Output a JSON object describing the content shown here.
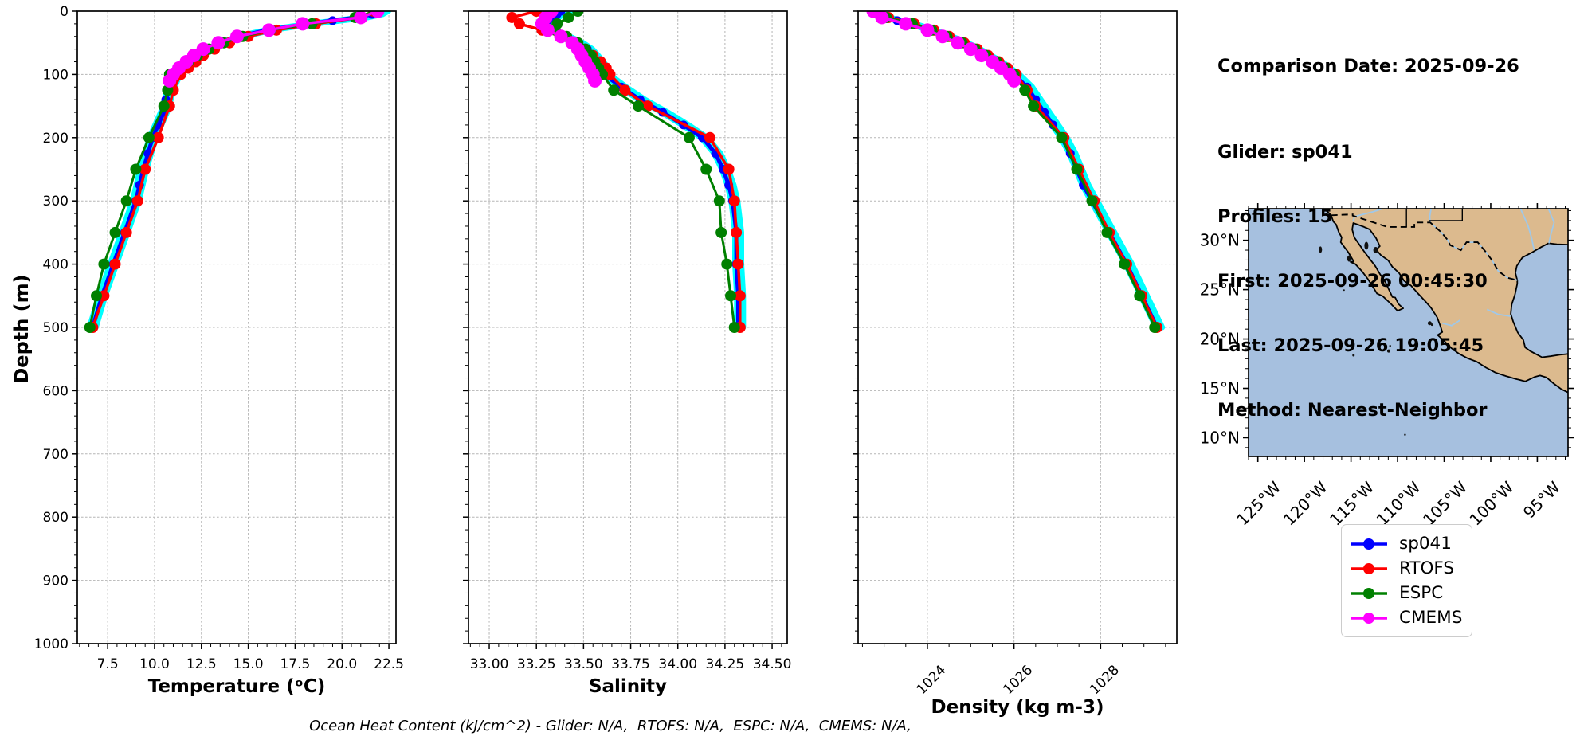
{
  "info_panel": {
    "comparison_date": "Comparison Date: 2025-09-26",
    "glider": "Glider: sp041",
    "profiles": "Profiles: 15",
    "first": "First: 2025-09-26 00:45:30",
    "last": "Last: 2025-09-26 19:05:45",
    "method": "Method: Nearest-Neighbor"
  },
  "footer": "Ocean Heat Content (kJ/cm^2) - Glider: N/A,  RTOFS: N/A,  ESPC: N/A,  CMEMS: N/A,",
  "legend": {
    "items": [
      {
        "label": "sp041",
        "color": "#0000ff"
      },
      {
        "label": "RTOFS",
        "color": "#ff0000"
      },
      {
        "label": "ESPC",
        "color": "#008000"
      },
      {
        "label": "CMEMS",
        "color": "#ff00ff"
      }
    ]
  },
  "depth_axis": {
    "label": "Depth (m)",
    "lim": [
      0,
      1000
    ],
    "ticks": [
      0,
      100,
      200,
      300,
      400,
      500,
      600,
      700,
      800,
      900,
      1000
    ],
    "tick_labels": [
      "0",
      "100",
      "200",
      "300",
      "400",
      "500",
      "600",
      "700",
      "800",
      "900",
      "1000"
    ],
    "minor_step": 20
  },
  "chart_data": [
    {
      "id": "temperature-profile",
      "type": "line",
      "xlabel": "Temperature (ᵒC)",
      "ylabel": "Depth (m)",
      "xlim": [
        5.88,
        22.88
      ],
      "ylim": [
        0,
        1000
      ],
      "grid": true,
      "xticks": [
        7.5,
        10.0,
        12.5,
        15.0,
        17.5,
        20.0,
        22.5
      ],
      "xtick_labels": [
        "7.5",
        "10.0",
        "12.5",
        "15.0",
        "17.5",
        "20.0",
        "22.5"
      ],
      "xtick_rotation": 0,
      "x_minor_step": 0.5,
      "series": [
        {
          "name": "glider-scatter",
          "color": "#00ffff",
          "lw": 7,
          "marker_r": 0,
          "band": true,
          "depths": [
            0,
            5,
            10,
            15,
            20,
            30,
            40,
            50,
            60,
            70,
            80,
            90,
            100,
            120,
            140,
            160,
            180,
            200,
            225,
            250,
            275,
            300,
            350,
            400,
            450,
            500
          ],
          "values": [
            22.3,
            22.0,
            21.2,
            19.8,
            18.4,
            16.1,
            14.6,
            13.7,
            12.9,
            12.4,
            12.0,
            11.5,
            11.2,
            10.9,
            10.7,
            10.5,
            10.2,
            9.9,
            9.65,
            9.4,
            9.2,
            9.0,
            8.4,
            7.8,
            7.2,
            6.7
          ]
        },
        {
          "name": "sp041",
          "color": "#0000ff",
          "lw": 5,
          "marker_r": 5.5,
          "depths": [
            0,
            5,
            10,
            15,
            20,
            30,
            40,
            50,
            60,
            70,
            80,
            90,
            100,
            120,
            140,
            160,
            180,
            200,
            225,
            250,
            275,
            300,
            350,
            400,
            450,
            500
          ],
          "values": [
            21.9,
            21.6,
            20.8,
            19.5,
            18.2,
            16.0,
            14.5,
            13.6,
            12.8,
            12.3,
            11.9,
            11.4,
            11.1,
            10.8,
            10.6,
            10.5,
            10.2,
            9.9,
            9.65,
            9.4,
            9.2,
            9.0,
            8.4,
            7.8,
            7.2,
            6.7
          ]
        },
        {
          "name": "RTOFS",
          "color": "#ff0000",
          "lw": 3.5,
          "marker_r": 7,
          "depths": [
            0,
            10,
            20,
            30,
            40,
            50,
            60,
            70,
            80,
            90,
            100,
            125,
            150,
            200,
            250,
            300,
            350,
            400,
            450,
            500
          ],
          "values": [
            21.7,
            20.9,
            18.6,
            16.5,
            15.0,
            14.0,
            13.2,
            12.6,
            12.2,
            11.8,
            11.4,
            11.0,
            10.8,
            10.2,
            9.5,
            9.1,
            8.5,
            7.9,
            7.3,
            6.7
          ]
        },
        {
          "name": "ESPC",
          "color": "#008000",
          "lw": 3,
          "marker_r": 7,
          "depths": [
            0,
            10,
            20,
            30,
            40,
            50,
            60,
            70,
            80,
            90,
            100,
            125,
            150,
            200,
            250,
            300,
            350,
            400,
            450,
            500
          ],
          "values": [
            21.8,
            20.7,
            18.4,
            16.2,
            14.7,
            13.7,
            12.9,
            12.3,
            11.8,
            11.3,
            10.8,
            10.7,
            10.5,
            9.7,
            9.0,
            8.5,
            7.9,
            7.3,
            6.9,
            6.55
          ]
        },
        {
          "name": "CMEMS",
          "color": "#ff00ff",
          "lw": 3.5,
          "marker_r": 8.5,
          "depths": [
            0,
            10,
            20,
            30,
            40,
            50,
            60,
            70,
            80,
            90,
            100,
            110
          ],
          "values": [
            21.9,
            21.0,
            17.9,
            16.1,
            14.4,
            13.4,
            12.6,
            12.1,
            11.7,
            11.3,
            11.0,
            10.8
          ]
        }
      ]
    },
    {
      "id": "salinity-profile",
      "type": "line",
      "xlabel": "Salinity",
      "ylabel": "Depth (m)",
      "xlim": [
        32.89,
        34.58
      ],
      "ylim": [
        0,
        1000
      ],
      "grid": true,
      "xticks": [
        33.0,
        33.25,
        33.5,
        33.75,
        34.0,
        34.25,
        34.5
      ],
      "xtick_labels": [
        "33.00",
        "33.25",
        "33.50",
        "33.75",
        "34.00",
        "34.25",
        "34.50"
      ],
      "xtick_rotation": 0,
      "x_minor_step": 0.05,
      "series": [
        {
          "name": "glider-scatter",
          "color": "#00ffff",
          "lw": 7,
          "marker_r": 0,
          "band": true,
          "depths": [
            0,
            5,
            10,
            15,
            20,
            30,
            40,
            50,
            60,
            70,
            80,
            90,
            100,
            120,
            140,
            160,
            180,
            200,
            225,
            250,
            275,
            300,
            350,
            400,
            450,
            500
          ],
          "values": [
            33.42,
            33.38,
            33.35,
            33.31,
            33.29,
            33.33,
            33.41,
            33.48,
            33.53,
            33.56,
            33.59,
            33.61,
            33.62,
            33.71,
            33.81,
            33.93,
            34.04,
            34.14,
            34.21,
            34.25,
            34.28,
            34.3,
            34.32,
            34.32,
            34.33,
            34.33
          ]
        },
        {
          "name": "sp041",
          "color": "#0000ff",
          "lw": 5,
          "marker_r": 5.5,
          "depths": [
            0,
            5,
            10,
            15,
            20,
            30,
            40,
            50,
            60,
            70,
            80,
            90,
            100,
            120,
            140,
            160,
            180,
            200,
            225,
            250,
            275,
            300,
            350,
            400,
            450,
            500
          ],
          "values": [
            33.38,
            33.36,
            33.34,
            33.31,
            33.29,
            33.33,
            33.4,
            33.47,
            33.52,
            33.55,
            33.58,
            33.6,
            33.61,
            33.7,
            33.8,
            33.92,
            34.03,
            34.13,
            34.2,
            34.24,
            34.27,
            34.29,
            34.31,
            34.31,
            34.32,
            34.32
          ]
        },
        {
          "name": "RTOFS",
          "color": "#ff0000",
          "lw": 3.5,
          "marker_r": 7,
          "depths": [
            0,
            10,
            20,
            30,
            40,
            50,
            60,
            70,
            80,
            90,
            100,
            125,
            150,
            200,
            250,
            300,
            350,
            400,
            450,
            500
          ],
          "values": [
            33.25,
            33.12,
            33.16,
            33.28,
            33.38,
            33.46,
            33.51,
            33.55,
            33.59,
            33.62,
            33.64,
            33.72,
            33.84,
            34.17,
            34.27,
            34.3,
            34.31,
            34.32,
            34.33,
            34.33
          ]
        },
        {
          "name": "ESPC",
          "color": "#008000",
          "lw": 3,
          "marker_r": 7,
          "depths": [
            0,
            10,
            20,
            30,
            40,
            50,
            60,
            70,
            80,
            90,
            100,
            125,
            150,
            200,
            250,
            300,
            350,
            400,
            450,
            500
          ],
          "values": [
            33.47,
            33.42,
            33.36,
            33.35,
            33.41,
            33.47,
            33.51,
            33.54,
            33.56,
            33.58,
            33.6,
            33.66,
            33.79,
            34.06,
            34.15,
            34.22,
            34.23,
            34.26,
            34.28,
            34.3
          ]
        },
        {
          "name": "CMEMS",
          "color": "#ff00ff",
          "lw": 3.5,
          "marker_r": 8.5,
          "depths": [
            0,
            10,
            20,
            30,
            40,
            50,
            60,
            70,
            80,
            90,
            100,
            110
          ],
          "values": [
            33.33,
            33.3,
            33.28,
            33.31,
            33.38,
            33.44,
            33.47,
            33.49,
            33.51,
            33.53,
            33.55,
            33.56
          ]
        }
      ]
    },
    {
      "id": "density-profile",
      "type": "line",
      "xlabel": "Density (kg m-3)",
      "ylabel": "Depth (m)",
      "xlim": [
        1022.4,
        1029.76
      ],
      "ylim": [
        0,
        1000
      ],
      "grid": true,
      "xticks": [
        1024,
        1026,
        1028
      ],
      "xtick_labels": [
        "1024",
        "1026",
        "1028"
      ],
      "xtick_rotation": -45,
      "x_minor_step": 0.5,
      "series": [
        {
          "name": "glider-scatter",
          "color": "#00ffff",
          "lw": 7,
          "marker_r": 0,
          "band": true,
          "depths": [
            0,
            5,
            10,
            15,
            20,
            30,
            40,
            50,
            60,
            70,
            80,
            90,
            100,
            120,
            140,
            160,
            180,
            200,
            225,
            250,
            275,
            300,
            350,
            400,
            450,
            500
          ],
          "values": [
            1022.8,
            1022.9,
            1023.05,
            1023.35,
            1023.65,
            1024.1,
            1024.5,
            1024.85,
            1025.15,
            1025.4,
            1025.65,
            1025.85,
            1026.05,
            1026.35,
            1026.55,
            1026.75,
            1026.95,
            1027.15,
            1027.35,
            1027.5,
            1027.65,
            1027.85,
            1028.25,
            1028.65,
            1029.0,
            1029.35
          ]
        },
        {
          "name": "sp041",
          "color": "#0000ff",
          "lw": 5,
          "marker_r": 5.5,
          "depths": [
            0,
            5,
            10,
            15,
            20,
            30,
            40,
            50,
            60,
            70,
            80,
            90,
            100,
            120,
            140,
            160,
            180,
            200,
            225,
            250,
            275,
            300,
            350,
            400,
            450,
            500
          ],
          "values": [
            1022.85,
            1022.9,
            1023.0,
            1023.3,
            1023.6,
            1024.05,
            1024.45,
            1024.8,
            1025.1,
            1025.35,
            1025.6,
            1025.8,
            1026.0,
            1026.3,
            1026.5,
            1026.7,
            1026.9,
            1027.1,
            1027.3,
            1027.45,
            1027.6,
            1027.8,
            1028.2,
            1028.6,
            1028.95,
            1029.3
          ]
        },
        {
          "name": "RTOFS",
          "color": "#ff0000",
          "lw": 3.5,
          "marker_r": 7,
          "depths": [
            0,
            10,
            20,
            30,
            40,
            50,
            60,
            70,
            80,
            90,
            100,
            125,
            150,
            200,
            250,
            300,
            350,
            400,
            450,
            500
          ],
          "values": [
            1022.9,
            1023.1,
            1023.7,
            1024.15,
            1024.5,
            1024.85,
            1025.15,
            1025.4,
            1025.65,
            1025.85,
            1026.05,
            1026.3,
            1026.5,
            1027.15,
            1027.5,
            1027.85,
            1028.2,
            1028.6,
            1028.95,
            1029.3
          ]
        },
        {
          "name": "ESPC",
          "color": "#008000",
          "lw": 3,
          "marker_r": 7,
          "depths": [
            0,
            10,
            20,
            30,
            40,
            50,
            60,
            70,
            80,
            90,
            100,
            125,
            150,
            200,
            250,
            300,
            350,
            400,
            450,
            500
          ],
          "values": [
            1022.8,
            1023.05,
            1023.65,
            1024.1,
            1024.45,
            1024.8,
            1025.1,
            1025.35,
            1025.6,
            1025.8,
            1026.0,
            1026.25,
            1026.45,
            1027.1,
            1027.45,
            1027.8,
            1028.15,
            1028.55,
            1028.9,
            1029.25
          ]
        },
        {
          "name": "CMEMS",
          "color": "#ff00ff",
          "lw": 3.5,
          "marker_r": 8.5,
          "depths": [
            0,
            10,
            20,
            30,
            40,
            50,
            60,
            70,
            80,
            90,
            100,
            110
          ],
          "values": [
            1022.75,
            1022.95,
            1023.5,
            1024.0,
            1024.35,
            1024.7,
            1025.0,
            1025.25,
            1025.5,
            1025.7,
            1025.9,
            1026.0
          ]
        }
      ]
    }
  ],
  "map": {
    "region": "Mexico / Baja California Pacific",
    "extent": {
      "lon": [
        -126.0,
        -91.7
      ],
      "lat": [
        8.1,
        33.2
      ]
    },
    "lat_ticks": [
      {
        "v": 30,
        "label": "30°N"
      },
      {
        "v": 25,
        "label": "25°N"
      },
      {
        "v": 20,
        "label": "20°N"
      },
      {
        "v": 15,
        "label": "15°N"
      },
      {
        "v": 10,
        "label": "10°N"
      }
    ],
    "lon_ticks": [
      {
        "v": -125,
        "label": "125°W"
      },
      {
        "v": -120,
        "label": "120°W"
      },
      {
        "v": -115,
        "label": "115°W"
      },
      {
        "v": -110,
        "label": "110°W"
      },
      {
        "v": -105,
        "label": "105°W"
      },
      {
        "v": -100,
        "label": "100°W"
      },
      {
        "v": -95,
        "label": "95°W"
      }
    ],
    "minor_step_deg": 1,
    "ocean_color": "#a6c0df",
    "land_color": "#dcba8e",
    "river_color": "#a0c8e8",
    "coast_color": "#000000"
  }
}
